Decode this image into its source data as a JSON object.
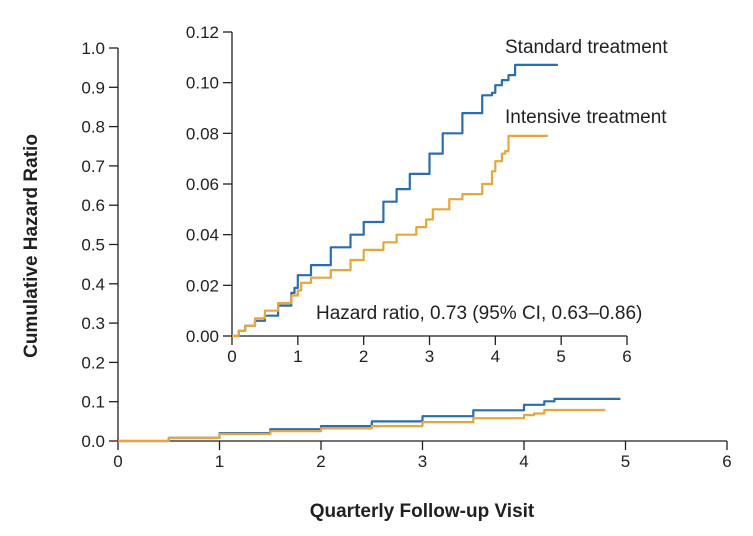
{
  "chart_data": [
    {
      "id": "main",
      "type": "line",
      "title": "",
      "xlabel": "Quarterly Follow-up Visit",
      "ylabel": "Cumulative Hazard Ratio",
      "xlim": [
        0,
        6
      ],
      "ylim": [
        0,
        1.0
      ],
      "x_ticks": [
        "0",
        "1",
        "2",
        "3",
        "4",
        "5",
        "6"
      ],
      "y_ticks": [
        "0.0",
        "0.1",
        "0.2",
        "0.3",
        "0.4",
        "0.5",
        "0.6",
        "0.7",
        "0.8",
        "0.9",
        "1.0"
      ],
      "grid": false,
      "colors": {
        "standard": "#2a6db1",
        "intensive": "#e8a63a"
      },
      "series": [
        {
          "name": "Standard treatment",
          "color": "#2a6db1",
          "x": [
            0,
            0.5,
            1,
            1.5,
            2,
            2.5,
            3,
            3.5,
            4,
            4.2,
            4.3,
            4.95
          ],
          "y": [
            0,
            0.008,
            0.02,
            0.03,
            0.038,
            0.05,
            0.063,
            0.078,
            0.092,
            0.101,
            0.107,
            0.107
          ]
        },
        {
          "name": "Intensive treatment",
          "color": "#e8a63a",
          "x": [
            0,
            0.5,
            1,
            1.5,
            2,
            2.5,
            3,
            3.5,
            4,
            4.1,
            4.2,
            4.8
          ],
          "y": [
            0,
            0.008,
            0.018,
            0.025,
            0.032,
            0.038,
            0.048,
            0.058,
            0.066,
            0.07,
            0.079,
            0.079
          ]
        }
      ]
    },
    {
      "id": "inset",
      "type": "line",
      "title": "",
      "xlabel": "",
      "ylabel": "",
      "xlim": [
        0,
        6
      ],
      "ylim": [
        0,
        0.12
      ],
      "x_ticks": [
        "0",
        "1",
        "2",
        "3",
        "4",
        "5",
        "6"
      ],
      "y_ticks": [
        "0.00",
        "0.02",
        "0.04",
        "0.06",
        "0.08",
        "0.10",
        "0.12"
      ],
      "grid": false,
      "annotation": "Hazard ratio, 0.73 (95% CI, 0.63–0.86)",
      "legend_location": "top-right, labels beside line ends",
      "series": [
        {
          "name": "Standard treatment",
          "color": "#2a6db1",
          "x": [
            0,
            0.1,
            0.2,
            0.35,
            0.5,
            0.7,
            0.9,
            0.95,
            1.0,
            1.2,
            1.5,
            1.8,
            2.0,
            2.3,
            2.5,
            2.7,
            3.0,
            3.2,
            3.5,
            3.8,
            3.95,
            4.0,
            4.1,
            4.2,
            4.3,
            4.95
          ],
          "y": [
            0,
            0.002,
            0.004,
            0.006,
            0.008,
            0.012,
            0.017,
            0.019,
            0.024,
            0.028,
            0.035,
            0.04,
            0.045,
            0.053,
            0.058,
            0.064,
            0.072,
            0.08,
            0.088,
            0.095,
            0.096,
            0.099,
            0.101,
            0.103,
            0.107,
            0.107
          ]
        },
        {
          "name": "Intensive treatment",
          "color": "#e8a63a",
          "x": [
            0,
            0.1,
            0.2,
            0.35,
            0.5,
            0.7,
            0.9,
            1.0,
            1.05,
            1.2,
            1.5,
            1.8,
            2.0,
            2.3,
            2.5,
            2.8,
            2.95,
            3.05,
            3.3,
            3.5,
            3.8,
            3.95,
            4.0,
            4.1,
            4.15,
            4.2,
            4.8
          ],
          "y": [
            0,
            0.002,
            0.004,
            0.007,
            0.01,
            0.013,
            0.016,
            0.018,
            0.021,
            0.023,
            0.026,
            0.03,
            0.034,
            0.037,
            0.04,
            0.043,
            0.046,
            0.05,
            0.054,
            0.056,
            0.06,
            0.065,
            0.069,
            0.072,
            0.073,
            0.079,
            0.079
          ]
        }
      ]
    }
  ]
}
